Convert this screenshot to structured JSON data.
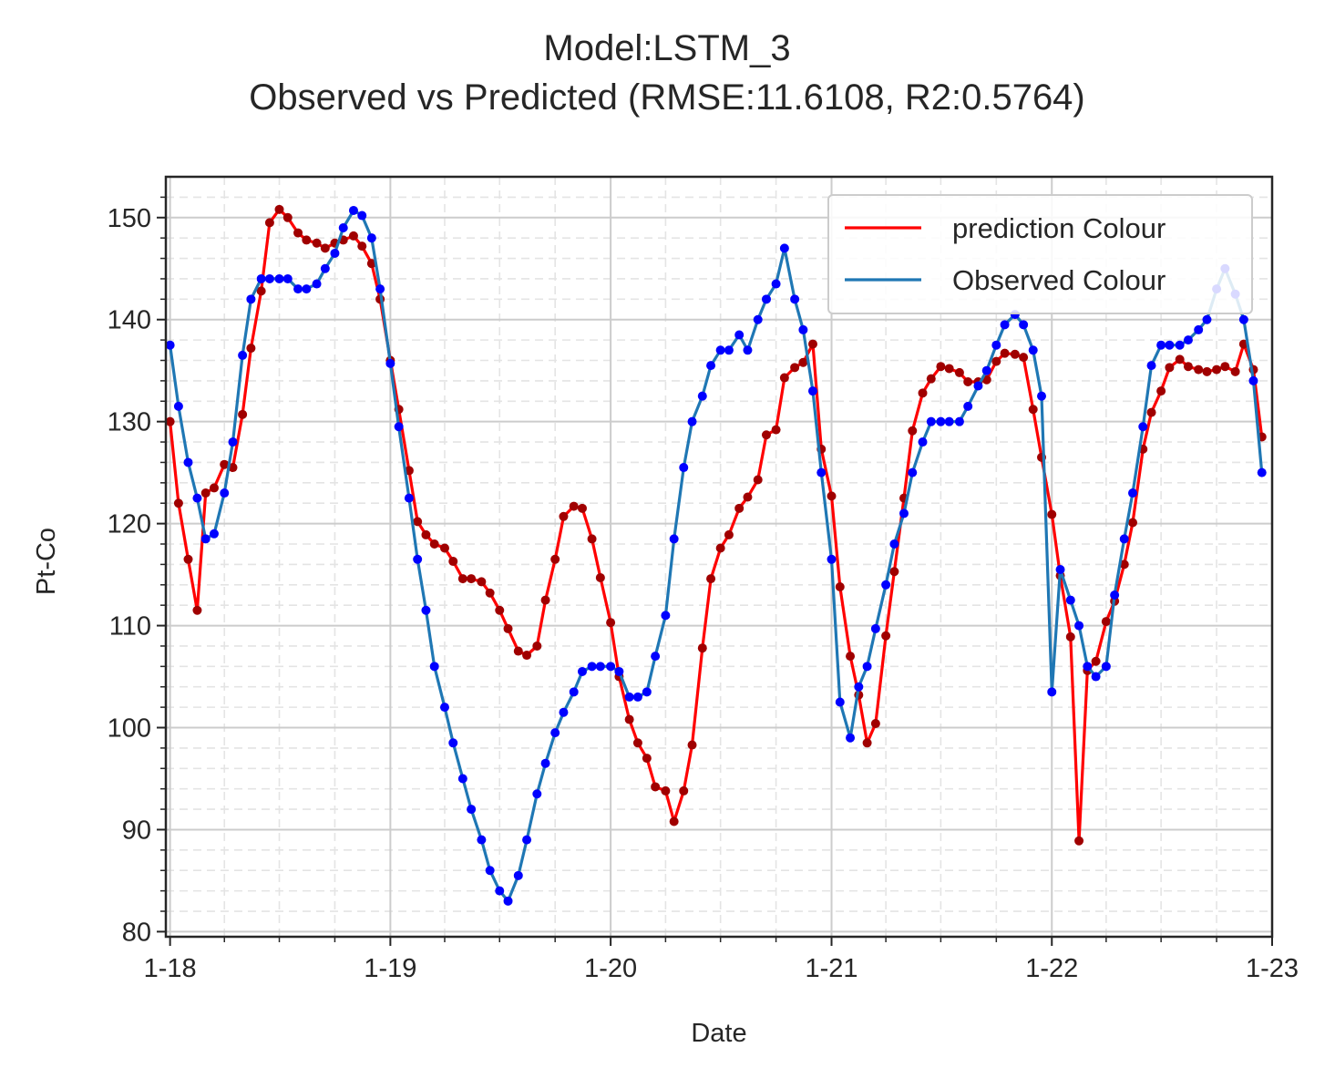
{
  "title_line1": "Model:LSTM_3",
  "title_line2": "Observed vs Predicted (RMSE:11.6108, R2:0.5764)",
  "chart_data": {
    "type": "line",
    "xlabel": "Date",
    "ylabel": "Pt-Co",
    "xlim": [
      "2017-12-25",
      "2023-01-01"
    ],
    "ylim": [
      79.5,
      154
    ],
    "x_ticks": [
      {
        "date": "2018-01-01",
        "label": "1-18"
      },
      {
        "date": "2019-01-01",
        "label": "1-19"
      },
      {
        "date": "2020-01-01",
        "label": "1-20"
      },
      {
        "date": "2021-01-01",
        "label": "1-21"
      },
      {
        "date": "2022-01-01",
        "label": "1-22"
      },
      {
        "date": "2023-01-01",
        "label": "1-23"
      }
    ],
    "y_ticks": [
      80,
      90,
      100,
      110,
      120,
      130,
      140,
      150
    ],
    "grid": true,
    "minor_grid": true,
    "legend_position": "top-right",
    "series": [
      {
        "name": "prediction Colour",
        "color": "#ff0000",
        "marker_color": "#a00000",
        "points": [
          [
            "2018-01-01",
            130
          ],
          [
            "2018-01-15",
            122
          ],
          [
            "2018-01-31",
            116.5
          ],
          [
            "2018-02-15",
            111.5
          ],
          [
            "2018-03-01",
            123
          ],
          [
            "2018-03-15",
            123.5
          ],
          [
            "2018-04-01",
            125.8
          ],
          [
            "2018-04-15",
            125.5
          ],
          [
            "2018-05-01",
            130.7
          ],
          [
            "2018-05-15",
            137.2
          ],
          [
            "2018-06-01",
            142.8
          ],
          [
            "2018-06-15",
            149.5
          ],
          [
            "2018-07-01",
            150.8
          ],
          [
            "2018-07-15",
            150
          ],
          [
            "2018-08-01",
            148.5
          ],
          [
            "2018-08-15",
            147.8
          ],
          [
            "2018-09-01",
            147.5
          ],
          [
            "2018-09-15",
            147
          ],
          [
            "2018-10-01",
            147.5
          ],
          [
            "2018-10-15",
            147.8
          ],
          [
            "2018-11-01",
            148.2
          ],
          [
            "2018-11-15",
            147.2
          ],
          [
            "2018-12-01",
            145.5
          ],
          [
            "2018-12-15",
            142
          ],
          [
            "2019-01-01",
            136
          ],
          [
            "2019-01-15",
            131.2
          ],
          [
            "2019-02-01",
            125.2
          ],
          [
            "2019-02-15",
            120.2
          ],
          [
            "2019-03-01",
            118.9
          ],
          [
            "2019-03-15",
            118
          ],
          [
            "2019-04-01",
            117.6
          ],
          [
            "2019-04-15",
            116.3
          ],
          [
            "2019-05-01",
            114.6
          ],
          [
            "2019-05-15",
            114.6
          ],
          [
            "2019-06-01",
            114.3
          ],
          [
            "2019-06-15",
            113.2
          ],
          [
            "2019-07-01",
            111.5
          ],
          [
            "2019-07-15",
            109.7
          ],
          [
            "2019-08-01",
            107.5
          ],
          [
            "2019-08-15",
            107.1
          ],
          [
            "2019-09-01",
            108
          ],
          [
            "2019-09-15",
            112.5
          ],
          [
            "2019-10-01",
            116.5
          ],
          [
            "2019-10-15",
            120.7
          ],
          [
            "2019-11-01",
            121.7
          ],
          [
            "2019-11-15",
            121.5
          ],
          [
            "2019-12-01",
            118.5
          ],
          [
            "2019-12-15",
            114.7
          ],
          [
            "2020-01-01",
            110.3
          ],
          [
            "2020-01-15",
            105
          ],
          [
            "2020-02-01",
            100.8
          ],
          [
            "2020-02-15",
            98.5
          ],
          [
            "2020-03-01",
            97
          ],
          [
            "2020-03-15",
            94.2
          ],
          [
            "2020-04-01",
            93.8
          ],
          [
            "2020-04-15",
            90.8
          ],
          [
            "2020-05-01",
            93.8
          ],
          [
            "2020-05-15",
            98.3
          ],
          [
            "2020-06-01",
            107.8
          ],
          [
            "2020-06-15",
            114.6
          ],
          [
            "2020-07-01",
            117.6
          ],
          [
            "2020-07-15",
            118.9
          ],
          [
            "2020-08-01",
            121.5
          ],
          [
            "2020-08-15",
            122.6
          ],
          [
            "2020-09-01",
            124.3
          ],
          [
            "2020-09-15",
            128.7
          ],
          [
            "2020-10-01",
            129.2
          ],
          [
            "2020-10-15",
            134.3
          ],
          [
            "2020-11-01",
            135.3
          ],
          [
            "2020-11-15",
            135.8
          ],
          [
            "2020-12-01",
            137.6
          ],
          [
            "2020-12-15",
            127.3
          ],
          [
            "2021-01-01",
            122.7
          ],
          [
            "2021-01-15",
            113.8
          ],
          [
            "2021-02-01",
            107
          ],
          [
            "2021-02-15",
            103.2
          ],
          [
            "2021-03-01",
            98.5
          ],
          [
            "2021-03-15",
            100.4
          ],
          [
            "2021-04-01",
            109
          ],
          [
            "2021-04-15",
            115.3
          ],
          [
            "2021-05-01",
            122.5
          ],
          [
            "2021-05-15",
            129.1
          ],
          [
            "2021-06-01",
            132.8
          ],
          [
            "2021-06-15",
            134.2
          ],
          [
            "2021-07-01",
            135.4
          ],
          [
            "2021-07-15",
            135.2
          ],
          [
            "2021-08-01",
            134.8
          ],
          [
            "2021-08-15",
            133.9
          ],
          [
            "2021-09-01",
            133.9
          ],
          [
            "2021-09-15",
            134.1
          ],
          [
            "2021-10-01",
            135.9
          ],
          [
            "2021-10-15",
            136.7
          ],
          [
            "2021-11-01",
            136.6
          ],
          [
            "2021-11-15",
            136.3
          ],
          [
            "2021-12-01",
            131.2
          ],
          [
            "2021-12-15",
            126.5
          ],
          [
            "2022-01-01",
            120.9
          ],
          [
            "2022-01-15",
            114.9
          ],
          [
            "2022-02-01",
            108.9
          ],
          [
            "2022-02-15",
            88.9
          ],
          [
            "2022-03-01",
            105.6
          ],
          [
            "2022-03-15",
            106.5
          ],
          [
            "2022-04-01",
            110.4
          ],
          [
            "2022-04-15",
            112.4
          ],
          [
            "2022-05-01",
            116
          ],
          [
            "2022-05-15",
            120.1
          ],
          [
            "2022-06-01",
            127.3
          ],
          [
            "2022-06-15",
            130.9
          ],
          [
            "2022-07-01",
            133
          ],
          [
            "2022-07-15",
            135.3
          ],
          [
            "2022-08-01",
            136.1
          ],
          [
            "2022-08-15",
            135.4
          ],
          [
            "2022-09-01",
            135.1
          ],
          [
            "2022-09-15",
            134.9
          ],
          [
            "2022-10-01",
            135.1
          ],
          [
            "2022-10-15",
            135.4
          ],
          [
            "2022-11-01",
            134.9
          ],
          [
            "2022-11-15",
            137.6
          ],
          [
            "2022-12-01",
            135.1
          ],
          [
            "2022-12-15",
            128.5
          ]
        ]
      },
      {
        "name": "Observed Colour",
        "color": "#1f77b4",
        "marker_color": "#0000ff",
        "points": [
          [
            "2018-01-01",
            137.5
          ],
          [
            "2018-01-15",
            131.5
          ],
          [
            "2018-01-31",
            126
          ],
          [
            "2018-02-15",
            122.5
          ],
          [
            "2018-03-01",
            118.5
          ],
          [
            "2018-03-15",
            119
          ],
          [
            "2018-04-01",
            123
          ],
          [
            "2018-04-15",
            128
          ],
          [
            "2018-05-01",
            136.5
          ],
          [
            "2018-05-15",
            142
          ],
          [
            "2018-06-01",
            144
          ],
          [
            "2018-06-15",
            144
          ],
          [
            "2018-07-01",
            144
          ],
          [
            "2018-07-15",
            144
          ],
          [
            "2018-08-01",
            143
          ],
          [
            "2018-08-15",
            143
          ],
          [
            "2018-09-01",
            143.5
          ],
          [
            "2018-09-15",
            145
          ],
          [
            "2018-10-01",
            146.5
          ],
          [
            "2018-10-15",
            149
          ],
          [
            "2018-11-01",
            150.7
          ],
          [
            "2018-11-15",
            150.2
          ],
          [
            "2018-12-01",
            148
          ],
          [
            "2018-12-15",
            143
          ],
          [
            "2019-01-01",
            135.7
          ],
          [
            "2019-01-15",
            129.5
          ],
          [
            "2019-02-01",
            122.5
          ],
          [
            "2019-02-15",
            116.5
          ],
          [
            "2019-03-01",
            111.5
          ],
          [
            "2019-03-15",
            106
          ],
          [
            "2019-04-01",
            102
          ],
          [
            "2019-04-15",
            98.5
          ],
          [
            "2019-05-01",
            95
          ],
          [
            "2019-05-15",
            92
          ],
          [
            "2019-06-01",
            89
          ],
          [
            "2019-06-15",
            86
          ],
          [
            "2019-07-01",
            84
          ],
          [
            "2019-07-15",
            83
          ],
          [
            "2019-08-01",
            85.5
          ],
          [
            "2019-08-15",
            89
          ],
          [
            "2019-09-01",
            93.5
          ],
          [
            "2019-09-15",
            96.5
          ],
          [
            "2019-10-01",
            99.5
          ],
          [
            "2019-10-15",
            101.5
          ],
          [
            "2019-11-01",
            103.5
          ],
          [
            "2019-11-15",
            105.5
          ],
          [
            "2019-12-01",
            106
          ],
          [
            "2019-12-15",
            106
          ],
          [
            "2020-01-01",
            106
          ],
          [
            "2020-01-15",
            105.5
          ],
          [
            "2020-02-01",
            103
          ],
          [
            "2020-02-15",
            103
          ],
          [
            "2020-03-01",
            103.5
          ],
          [
            "2020-03-15",
            107
          ],
          [
            "2020-04-01",
            111
          ],
          [
            "2020-04-15",
            118.5
          ],
          [
            "2020-05-01",
            125.5
          ],
          [
            "2020-05-15",
            130
          ],
          [
            "2020-06-01",
            132.5
          ],
          [
            "2020-06-15",
            135.5
          ],
          [
            "2020-07-01",
            137
          ],
          [
            "2020-07-15",
            137
          ],
          [
            "2020-08-01",
            138.5
          ],
          [
            "2020-08-15",
            137
          ],
          [
            "2020-09-01",
            140
          ],
          [
            "2020-09-15",
            142
          ],
          [
            "2020-10-01",
            143.5
          ],
          [
            "2020-10-15",
            147
          ],
          [
            "2020-11-01",
            142
          ],
          [
            "2020-11-15",
            139
          ],
          [
            "2020-12-01",
            133
          ],
          [
            "2020-12-15",
            125
          ],
          [
            "2021-01-01",
            116.5
          ],
          [
            "2021-01-15",
            102.5
          ],
          [
            "2021-02-01",
            99
          ],
          [
            "2021-02-15",
            104
          ],
          [
            "2021-03-01",
            106
          ],
          [
            "2021-03-15",
            109.7
          ],
          [
            "2021-04-01",
            114
          ],
          [
            "2021-04-15",
            118
          ],
          [
            "2021-05-01",
            121
          ],
          [
            "2021-05-15",
            125
          ],
          [
            "2021-06-01",
            128
          ],
          [
            "2021-06-15",
            130
          ],
          [
            "2021-07-01",
            130
          ],
          [
            "2021-07-15",
            130
          ],
          [
            "2021-08-01",
            130
          ],
          [
            "2021-08-15",
            131.5
          ],
          [
            "2021-09-01",
            133.5
          ],
          [
            "2021-09-15",
            135
          ],
          [
            "2021-10-01",
            137.5
          ],
          [
            "2021-10-15",
            139.5
          ],
          [
            "2021-11-01",
            140.5
          ],
          [
            "2021-11-15",
            139.5
          ],
          [
            "2021-12-01",
            137
          ],
          [
            "2021-12-15",
            132.5
          ],
          [
            "2022-01-01",
            103.5
          ],
          [
            "2022-01-15",
            115.5
          ],
          [
            "2022-02-01",
            112.5
          ],
          [
            "2022-02-15",
            110
          ],
          [
            "2022-03-01",
            106
          ],
          [
            "2022-03-15",
            105
          ],
          [
            "2022-04-01",
            106
          ],
          [
            "2022-04-15",
            113
          ],
          [
            "2022-05-01",
            118.5
          ],
          [
            "2022-05-15",
            123
          ],
          [
            "2022-06-01",
            129.5
          ],
          [
            "2022-06-15",
            135.5
          ],
          [
            "2022-07-01",
            137.5
          ],
          [
            "2022-07-15",
            137.5
          ],
          [
            "2022-08-01",
            137.5
          ],
          [
            "2022-08-15",
            138
          ],
          [
            "2022-09-01",
            139
          ],
          [
            "2022-09-15",
            140
          ],
          [
            "2022-10-01",
            143
          ],
          [
            "2022-10-15",
            145
          ],
          [
            "2022-11-01",
            142.5
          ],
          [
            "2022-11-15",
            140
          ],
          [
            "2022-12-01",
            134
          ],
          [
            "2022-12-15",
            125
          ]
        ]
      }
    ]
  }
}
